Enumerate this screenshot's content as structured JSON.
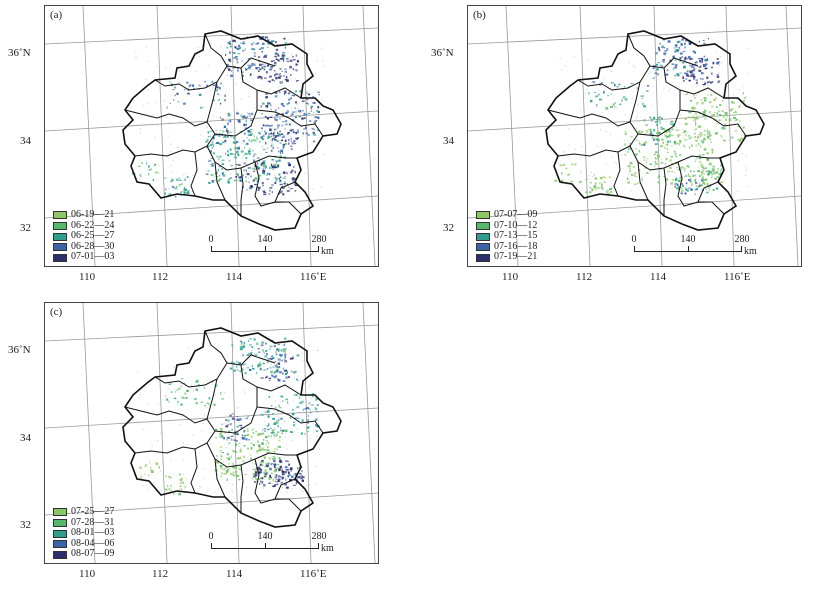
{
  "panels": [
    {
      "id": "a",
      "label": "(a)",
      "legend": [
        {
          "text": "06-19—21",
          "color": "#8cc665"
        },
        {
          "text": "06-22—24",
          "color": "#56b86a"
        },
        {
          "text": "06-25—27",
          "color": "#2f9e8f"
        },
        {
          "text": "06-28—30",
          "color": "#3a64a8"
        },
        {
          "text": "07-01—03",
          "color": "#2c2f6b"
        }
      ]
    },
    {
      "id": "b",
      "label": "(b)",
      "legend": [
        {
          "text": "07-07—09",
          "color": "#8cc665"
        },
        {
          "text": "07-10—12",
          "color": "#56b86a"
        },
        {
          "text": "07-13—15",
          "color": "#2f9e8f"
        },
        {
          "text": "07-16—18",
          "color": "#3a64a8"
        },
        {
          "text": "07-19—21",
          "color": "#2c2f6b"
        }
      ]
    },
    {
      "id": "c",
      "label": "(c)",
      "legend": [
        {
          "text": "07-25—27",
          "color": "#8cc665"
        },
        {
          "text": "07-28—31",
          "color": "#56b86a"
        },
        {
          "text": "08-01—03",
          "color": "#2f9e8f"
        },
        {
          "text": "08-04—06",
          "color": "#3a64a8"
        },
        {
          "text": "08-07—09",
          "color": "#2c2f6b"
        }
      ]
    }
  ],
  "lat_labels": [
    "36˚N",
    "34",
    "32"
  ],
  "lon_labels": [
    "110",
    "112",
    "114",
    "116˚E"
  ],
  "scalebar": {
    "ticks": [
      "0",
      "140",
      "280"
    ],
    "unit": "km"
  }
}
